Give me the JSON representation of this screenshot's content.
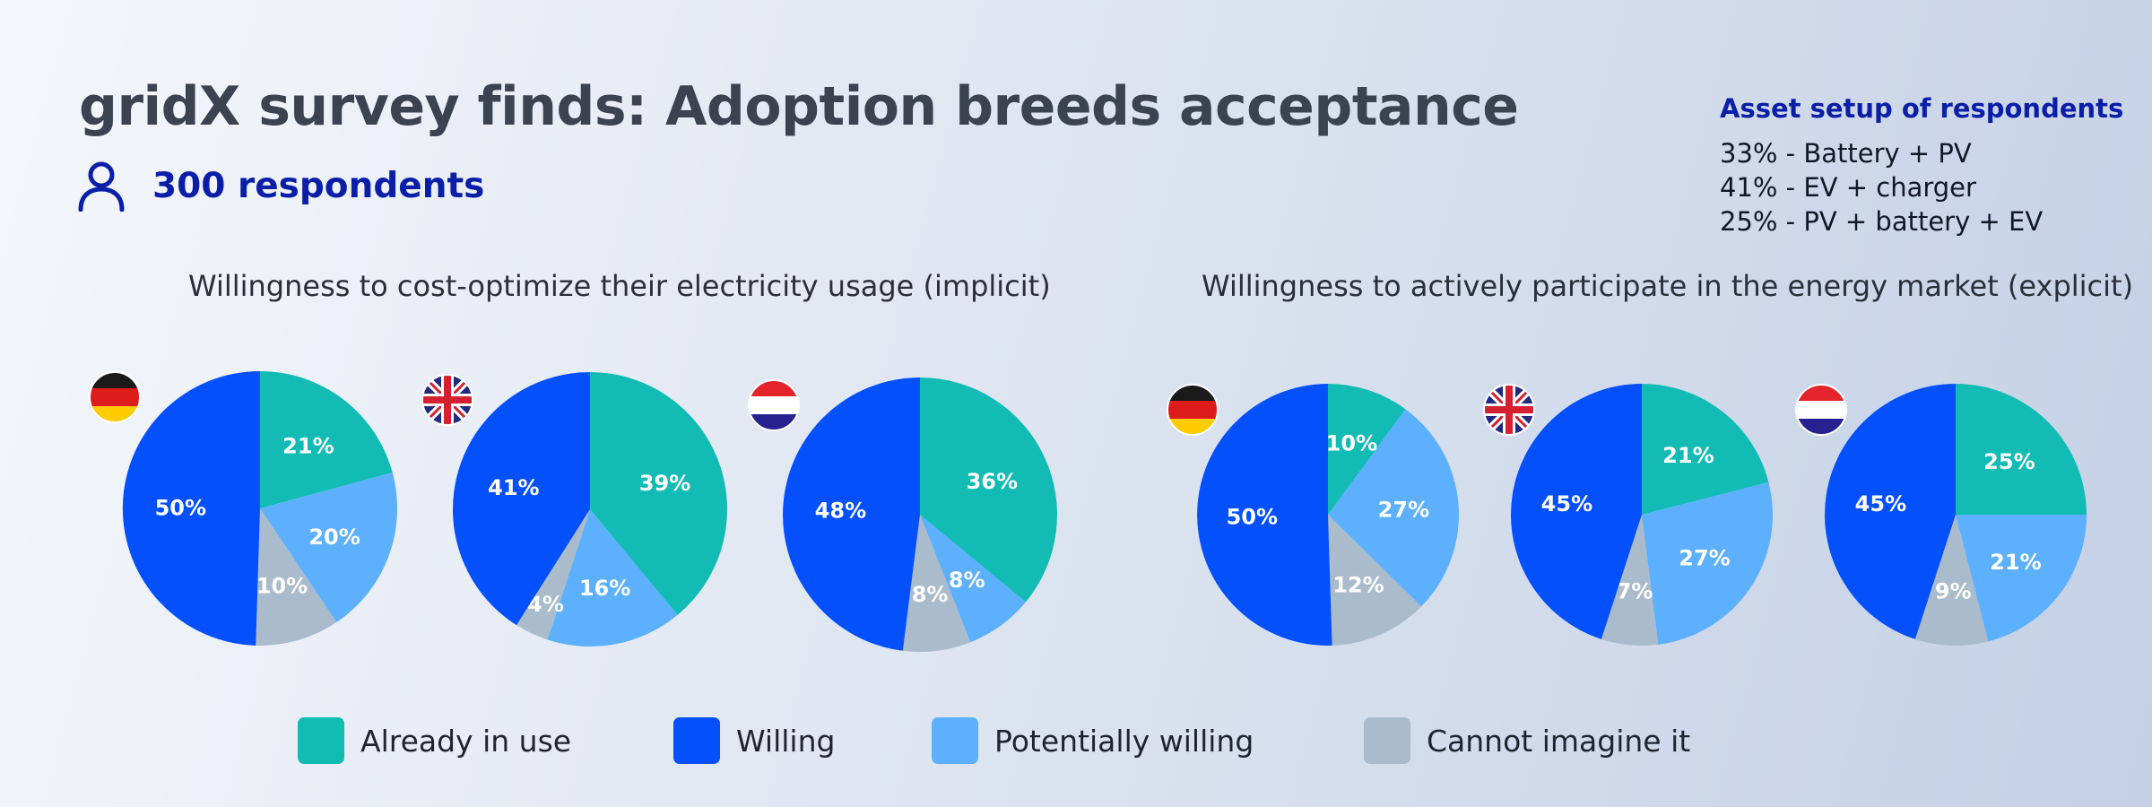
{
  "title": "gridX survey finds: Adoption breeds acceptance",
  "respondents": {
    "icon": "person-icon",
    "label": "300 respondents"
  },
  "asset_setup": {
    "title": "Asset setup of respondents",
    "lines": [
      "33% - Battery + PV",
      "41% - EV + charger",
      "25% - PV + battery + EV"
    ]
  },
  "sections": [
    {
      "title": "Willingness to cost-optimize their electricity usage (implicit)"
    },
    {
      "title": "Willingness to actively participate in the energy market (explicit)"
    }
  ],
  "legend": [
    {
      "label": "Already in use",
      "color": "#12bcb4"
    },
    {
      "label": "Willing",
      "color": "#0550fd"
    },
    {
      "label": "Potentially willing",
      "color": "#5cb0fe"
    },
    {
      "label": "Cannot imagine it",
      "color": "#aabbcc"
    }
  ],
  "chart_data": [
    {
      "type": "pie",
      "group": "implicit",
      "country": "Germany",
      "flag": "germany-flag-icon",
      "categories": [
        "Already in use",
        "Potentially willing",
        "Cannot imagine it",
        "Willing"
      ],
      "values": [
        21,
        20,
        10,
        50
      ],
      "labels": [
        "21%",
        "20%",
        "10%",
        "50%"
      ]
    },
    {
      "type": "pie",
      "group": "implicit",
      "country": "United Kingdom",
      "flag": "uk-flag-icon",
      "categories": [
        "Already in use",
        "Potentially willing",
        "Cannot imagine it",
        "Willing"
      ],
      "values": [
        39,
        16,
        4,
        41
      ],
      "labels": [
        "39%",
        "16%",
        "4%",
        "41%"
      ]
    },
    {
      "type": "pie",
      "group": "implicit",
      "country": "Netherlands",
      "flag": "netherlands-flag-icon",
      "categories": [
        "Already in use",
        "Potentially willing",
        "Cannot imagine it",
        "Willing"
      ],
      "values": [
        36,
        8,
        8,
        48
      ],
      "labels": [
        "36%",
        "8%",
        "8%",
        "48%"
      ]
    },
    {
      "type": "pie",
      "group": "explicit",
      "country": "Germany",
      "flag": "germany-flag-icon",
      "categories": [
        "Already in use",
        "Potentially willing",
        "Cannot imagine it",
        "Willing"
      ],
      "values": [
        10,
        27,
        12,
        50
      ],
      "labels": [
        "10%",
        "27%",
        "12%",
        "50%"
      ]
    },
    {
      "type": "pie",
      "group": "explicit",
      "country": "United Kingdom",
      "flag": "uk-flag-icon",
      "categories": [
        "Already in use",
        "Potentially willing",
        "Cannot imagine it",
        "Willing"
      ],
      "values": [
        21,
        27,
        7,
        45
      ],
      "labels": [
        "21%",
        "27%",
        "7%",
        "45%"
      ]
    },
    {
      "type": "pie",
      "group": "explicit",
      "country": "Netherlands",
      "flag": "netherlands-flag-icon",
      "categories": [
        "Already in use",
        "Potentially willing",
        "Cannot imagine it",
        "Willing"
      ],
      "values": [
        25,
        21,
        9,
        45
      ],
      "labels": [
        "25%",
        "21%",
        "9%",
        "45%"
      ]
    }
  ]
}
